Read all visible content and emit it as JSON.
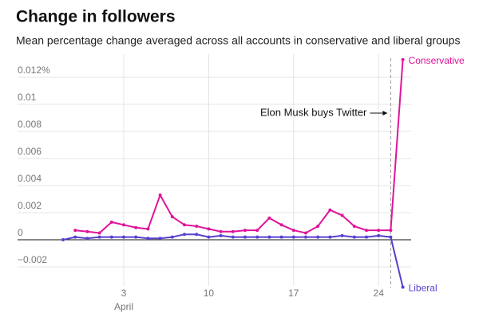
{
  "chart_data": {
    "type": "line",
    "title": "Change in followers",
    "subtitle": "Mean percentage change averaged across all accounts in conservative and liberal groups",
    "categories": [
      null,
      null,
      null,
      null,
      null,
      "3",
      null,
      null,
      null,
      null,
      null,
      null,
      "10",
      null,
      null,
      null,
      null,
      null,
      null,
      "17",
      null,
      null,
      null,
      null,
      null,
      null,
      "24",
      null,
      null
    ],
    "x_month": "April",
    "series": [
      {
        "name": "Conservative",
        "color": "#e0149a",
        "values": [
          null,
          0.0007,
          0.0006,
          0.0005,
          0.0013,
          0.0011,
          0.0009,
          0.0008,
          0.0033,
          0.0017,
          0.0011,
          0.001,
          0.0008,
          0.0006,
          0.0006,
          0.0007,
          0.0007,
          0.0016,
          0.0011,
          0.0007,
          0.0005,
          0.001,
          0.0022,
          0.0018,
          0.001,
          0.0007,
          0.0007,
          0.0007,
          0.0133
        ]
      },
      {
        "name": "Liberal",
        "color": "#5a3fd0",
        "values": [
          0,
          0.0002,
          0.0001,
          0.0002,
          0.0002,
          0.0002,
          0.0002,
          0.0001,
          0.0001,
          0.0002,
          0.0004,
          0.0004,
          0.0002,
          0.0003,
          0.0002,
          0.0002,
          0.0002,
          0.0002,
          0.0002,
          0.0002,
          0.0002,
          0.0002,
          0.0002,
          0.0003,
          0.0002,
          0.0002,
          0.0003,
          0.0002,
          -0.0035
        ]
      }
    ],
    "ylim": [
      -0.004,
      0.014
    ],
    "yticks": [
      {
        "value": -0.002,
        "label": "−0.002"
      },
      0,
      0.002,
      0.004,
      0.006,
      0.008,
      0.01,
      {
        "value": 0.012,
        "label": "0.012%"
      }
    ],
    "annotation": {
      "text": "Elon Musk buys Twitter",
      "x": 27
    },
    "grid": true
  }
}
